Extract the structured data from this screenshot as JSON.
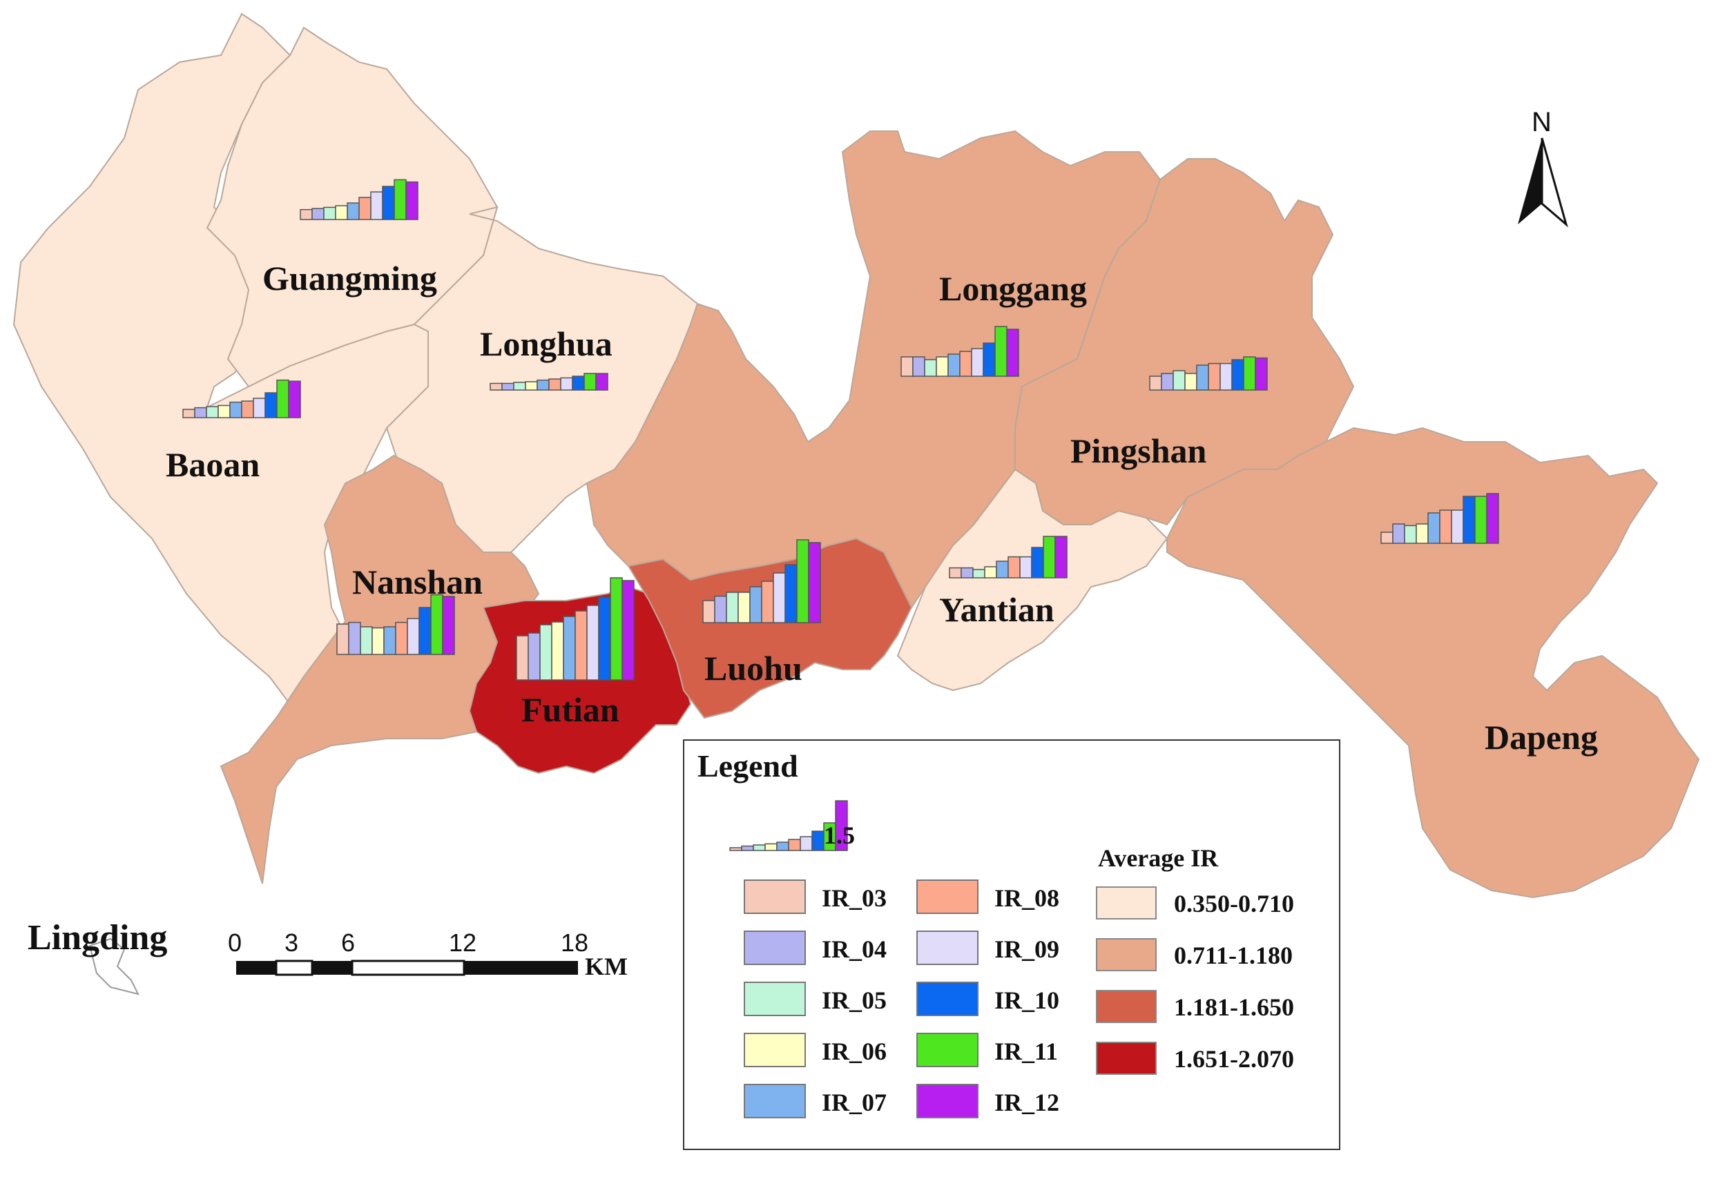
{
  "classes": [
    {
      "range": "0.350-0.710",
      "color": "#fde7d6"
    },
    {
      "range": "0.711-1.180",
      "color": "#e8a88a"
    },
    {
      "range": "1.181-1.650",
      "color": "#d4604a"
    },
    {
      "range": "1.651-2.070",
      "color": "#c0161b"
    }
  ],
  "months": [
    {
      "label": "IR_03",
      "color": "#f7c9b8"
    },
    {
      "label": "IR_04",
      "color": "#b3b3f2"
    },
    {
      "label": "IR_05",
      "color": "#bff5d9"
    },
    {
      "label": "IR_06",
      "color": "#ffffc4"
    },
    {
      "label": "IR_07",
      "color": "#7fb3f0"
    },
    {
      "label": "IR_08",
      "color": "#fca88c"
    },
    {
      "label": "IR_09",
      "color": "#e0dcfa"
    },
    {
      "label": "IR_10",
      "color": "#0a69f0"
    },
    {
      "label": "IR_11",
      "color": "#4de61f"
    },
    {
      "label": "IR_12",
      "color": "#b61ff0"
    }
  ],
  "districts": [
    {
      "name": "Guangming",
      "class": 0
    },
    {
      "name": "Baoan",
      "class": 0
    },
    {
      "name": "Longhua",
      "class": 0
    },
    {
      "name": "Nanshan",
      "class": 1
    },
    {
      "name": "Futian",
      "class": 3
    },
    {
      "name": "Luohu",
      "class": 2
    },
    {
      "name": "Yantian",
      "class": 0
    },
    {
      "name": "Longgang",
      "class": 1
    },
    {
      "name": "Pingshan",
      "class": 1
    },
    {
      "name": "Dapeng",
      "class": 1
    }
  ],
  "chart_data": {
    "type": "bar",
    "categories": [
      "IR_03",
      "IR_04",
      "IR_05",
      "IR_06",
      "IR_07",
      "IR_08",
      "IR_09",
      "IR_10",
      "IR_11",
      "IR_12"
    ],
    "series": [
      {
        "name": "Guangming",
        "values": [
          0.18,
          0.2,
          0.22,
          0.25,
          0.3,
          0.4,
          0.5,
          0.6,
          0.72,
          0.68
        ]
      },
      {
        "name": "Baoan",
        "values": [
          0.15,
          0.18,
          0.2,
          0.22,
          0.28,
          0.3,
          0.35,
          0.45,
          0.68,
          0.66
        ]
      },
      {
        "name": "Longhua",
        "values": [
          0.12,
          0.12,
          0.14,
          0.15,
          0.18,
          0.2,
          0.22,
          0.25,
          0.3,
          0.3
        ]
      },
      {
        "name": "Nanshan",
        "values": [
          0.55,
          0.58,
          0.5,
          0.48,
          0.5,
          0.58,
          0.65,
          0.85,
          1.08,
          1.05
        ]
      },
      {
        "name": "Futian",
        "values": [
          0.8,
          0.85,
          1.0,
          1.05,
          1.15,
          1.25,
          1.35,
          1.5,
          1.85,
          1.8
        ]
      },
      {
        "name": "Luohu",
        "values": [
          0.4,
          0.48,
          0.55,
          0.55,
          0.65,
          0.75,
          0.9,
          1.05,
          1.5,
          1.45
        ]
      },
      {
        "name": "Yantian",
        "values": [
          0.18,
          0.18,
          0.15,
          0.2,
          0.3,
          0.38,
          0.38,
          0.55,
          0.75,
          0.75
        ]
      },
      {
        "name": "Longgang",
        "values": [
          0.35,
          0.35,
          0.3,
          0.35,
          0.4,
          0.45,
          0.5,
          0.6,
          0.9,
          0.85
        ]
      },
      {
        "name": "Pingshan",
        "values": [
          0.25,
          0.3,
          0.35,
          0.3,
          0.45,
          0.48,
          0.48,
          0.55,
          0.6,
          0.58
        ]
      },
      {
        "name": "Dapeng",
        "values": [
          0.2,
          0.35,
          0.32,
          0.35,
          0.55,
          0.6,
          0.6,
          0.85,
          0.85,
          0.9
        ]
      }
    ],
    "legend_reference_value": 1.5,
    "legend_reference_text": "1.5",
    "ylim": [
      0,
      2.0
    ]
  },
  "legend": {
    "title": "Legend",
    "average_title": "Average IR"
  },
  "outer_label": "Lingding",
  "scale": {
    "ticks": [
      "0",
      "3",
      "6",
      "12",
      "18"
    ],
    "unit": "KM"
  },
  "north": {
    "label": "N"
  }
}
